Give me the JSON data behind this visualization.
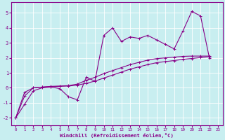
{
  "xlabel": "Windchill (Refroidissement éolien,°C)",
  "background_color": "#c8eef0",
  "line_color": "#880088",
  "grid_color": "#ffffff",
  "xlim": [
    -0.5,
    23.5
  ],
  "ylim": [
    -2.5,
    5.7
  ],
  "yticks": [
    -2,
    -1,
    0,
    1,
    2,
    3,
    4,
    5
  ],
  "xticks": [
    0,
    1,
    2,
    3,
    4,
    5,
    6,
    7,
    8,
    9,
    10,
    11,
    12,
    13,
    14,
    15,
    16,
    17,
    18,
    19,
    20,
    21,
    22,
    23
  ],
  "x": [
    0,
    1,
    2,
    3,
    4,
    5,
    6,
    7,
    8,
    9,
    10,
    11,
    12,
    13,
    14,
    15,
    16,
    17,
    18,
    19,
    20,
    21,
    22
  ],
  "y_main": [
    -2.0,
    -1.1,
    -0.2,
    0.0,
    0.05,
    -0.05,
    -0.6,
    -0.8,
    0.7,
    0.45,
    3.5,
    4.0,
    3.1,
    3.4,
    3.3,
    3.5,
    3.2,
    2.9,
    2.6,
    3.8,
    5.1,
    4.8,
    2.0
  ],
  "y_diag1": [
    -2.0,
    -0.55,
    0.0,
    0.05,
    0.08,
    0.1,
    0.12,
    0.18,
    0.3,
    0.45,
    0.65,
    0.85,
    1.05,
    1.25,
    1.4,
    1.55,
    1.68,
    1.75,
    1.82,
    1.9,
    1.96,
    2.02,
    2.08
  ],
  "y_diag2": [
    -2.0,
    -0.3,
    0.0,
    0.05,
    0.1,
    0.12,
    0.15,
    0.25,
    0.5,
    0.7,
    0.95,
    1.15,
    1.35,
    1.55,
    1.7,
    1.85,
    1.95,
    2.0,
    2.05,
    2.1,
    2.12,
    2.12,
    2.12
  ]
}
